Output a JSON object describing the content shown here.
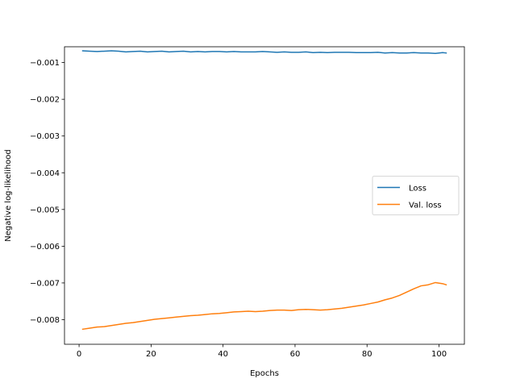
{
  "chart_data": {
    "type": "line",
    "title": "",
    "xlabel": "Epochs",
    "ylabel": "Negative log-likelihood",
    "xlim": [
      -4.05,
      107.05
    ],
    "ylim": [
      -0.00867,
      -0.00057
    ],
    "xticks": [
      0,
      20,
      40,
      60,
      80,
      100
    ],
    "yticks": [
      -0.008,
      -0.007,
      -0.006,
      -0.005,
      -0.004,
      -0.003,
      -0.002,
      -0.001
    ],
    "ytick_labels": [
      "−0.008",
      "−0.007",
      "−0.006",
      "−0.005",
      "−0.004",
      "−0.003",
      "−0.002",
      "−0.001"
    ],
    "grid": false,
    "legend_position": "center-right",
    "series": [
      {
        "name": "Loss",
        "color": "#1f77b4",
        "x": [
          1,
          3,
          5,
          7,
          9,
          11,
          13,
          15,
          17,
          19,
          21,
          23,
          25,
          27,
          29,
          31,
          33,
          35,
          37,
          39,
          41,
          43,
          45,
          47,
          49,
          51,
          53,
          55,
          57,
          59,
          61,
          63,
          65,
          67,
          69,
          71,
          73,
          75,
          77,
          79,
          81,
          83,
          85,
          87,
          89,
          91,
          93,
          95,
          97,
          99,
          101,
          102
        ],
        "values": [
          -0.00068,
          -0.00069,
          -0.0007,
          -0.00069,
          -0.00068,
          -0.00069,
          -0.00071,
          -0.0007,
          -0.00069,
          -0.00071,
          -0.0007,
          -0.00069,
          -0.00071,
          -0.0007,
          -0.00069,
          -0.00071,
          -0.0007,
          -0.00071,
          -0.0007,
          -0.0007,
          -0.00071,
          -0.0007,
          -0.00071,
          -0.00071,
          -0.00071,
          -0.0007,
          -0.00071,
          -0.00072,
          -0.00071,
          -0.00072,
          -0.00072,
          -0.00071,
          -0.00073,
          -0.00072,
          -0.00073,
          -0.00072,
          -0.00072,
          -0.00072,
          -0.00073,
          -0.00073,
          -0.00073,
          -0.00072,
          -0.00074,
          -0.00073,
          -0.00074,
          -0.00074,
          -0.00073,
          -0.00074,
          -0.00074,
          -0.00075,
          -0.00073,
          -0.00074
        ]
      },
      {
        "name": "Val. loss",
        "color": "#ff7f0e",
        "x": [
          1,
          3,
          5,
          7,
          9,
          11,
          13,
          15,
          17,
          19,
          21,
          23,
          25,
          27,
          29,
          31,
          33,
          35,
          37,
          39,
          41,
          43,
          45,
          47,
          49,
          51,
          53,
          55,
          57,
          59,
          61,
          63,
          65,
          67,
          69,
          71,
          73,
          75,
          77,
          79,
          81,
          83,
          85,
          87,
          89,
          91,
          93,
          95,
          97,
          99,
          101,
          102
        ],
        "values": [
          -0.00826,
          -0.00823,
          -0.0082,
          -0.00819,
          -0.00816,
          -0.00813,
          -0.0081,
          -0.00808,
          -0.00805,
          -0.00802,
          -0.00799,
          -0.00797,
          -0.00795,
          -0.00793,
          -0.00791,
          -0.00789,
          -0.00788,
          -0.00786,
          -0.00784,
          -0.00783,
          -0.00781,
          -0.00779,
          -0.00778,
          -0.00777,
          -0.00778,
          -0.00777,
          -0.00775,
          -0.00774,
          -0.00774,
          -0.00775,
          -0.00773,
          -0.00772,
          -0.00773,
          -0.00774,
          -0.00773,
          -0.00771,
          -0.00769,
          -0.00766,
          -0.00763,
          -0.0076,
          -0.00756,
          -0.00752,
          -0.00746,
          -0.00741,
          -0.00734,
          -0.00725,
          -0.00716,
          -0.00708,
          -0.00705,
          -0.00699,
          -0.00702,
          -0.00705
        ]
      }
    ]
  }
}
